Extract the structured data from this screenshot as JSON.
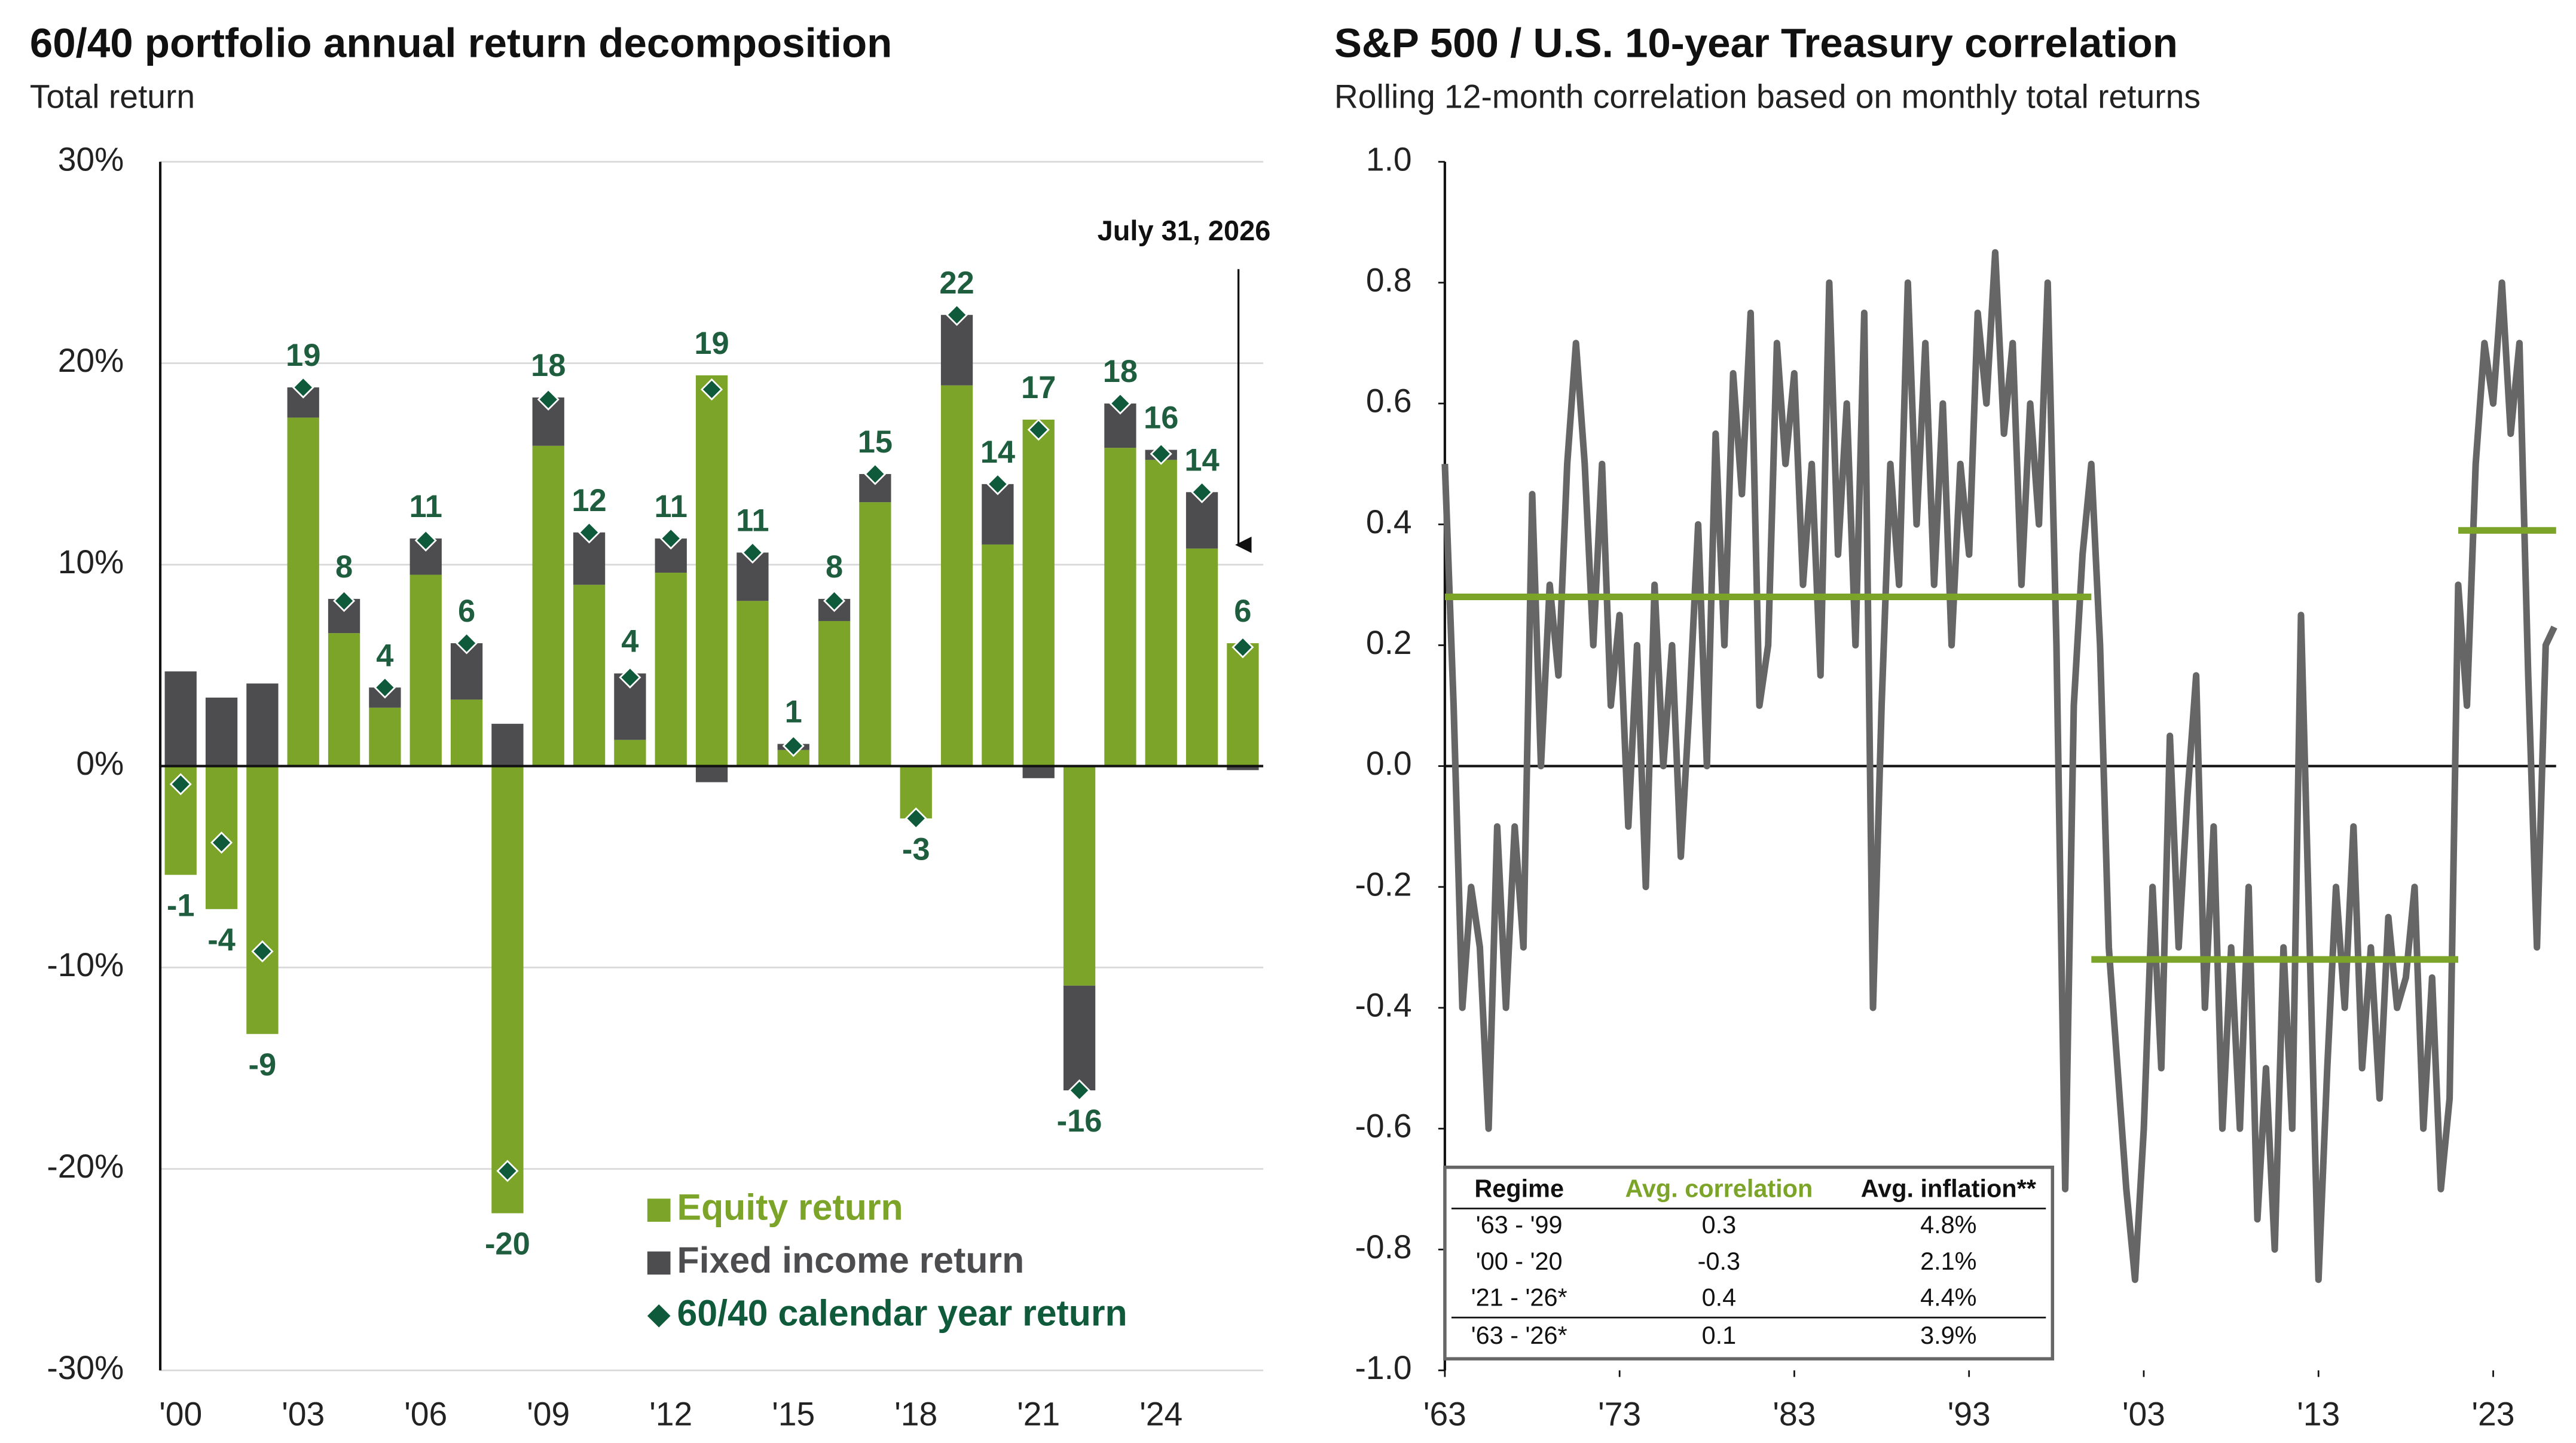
{
  "chart_data": [
    {
      "type": "bar",
      "stacked": true,
      "grid": true,
      "title": "60/40 portfolio annual return decomposition",
      "subtitle": "Total return",
      "annotation": "July 31, 2026",
      "categories": [
        "'00",
        null,
        null,
        "'03",
        null,
        null,
        "'06",
        null,
        null,
        "'09",
        null,
        null,
        "'12",
        null,
        null,
        "'15",
        null,
        null,
        "'18",
        null,
        null,
        "'21",
        null,
        null,
        "'24",
        null,
        null
      ],
      "series": [
        {
          "name": "Equity return",
          "color": "#7ba428",
          "values": [
            -5.4,
            -7.1,
            -13.3,
            17.3,
            6.6,
            2.9,
            9.5,
            3.3,
            -22.2,
            15.9,
            9.0,
            1.3,
            9.6,
            19.4,
            8.2,
            0.8,
            7.2,
            13.1,
            -2.6,
            18.9,
            11.0,
            17.2,
            -10.9,
            15.8,
            15.2,
            10.8,
            6.1
          ]
        },
        {
          "name": "Fixed income return",
          "color": "#4d4d4f",
          "values": [
            4.7,
            3.4,
            4.1,
            1.5,
            1.7,
            1.0,
            1.8,
            2.8,
            2.1,
            2.4,
            2.6,
            3.3,
            1.7,
            -0.8,
            2.4,
            0.3,
            1.1,
            1.4,
            0,
            3.5,
            3.0,
            -0.6,
            -5.2,
            2.2,
            0.5,
            2.8,
            -0.2
          ]
        }
      ],
      "total": {
        "name": "60/40 calendar year return",
        "color": "#0e5a3a",
        "values": [
          -0.9,
          -3.8,
          -9.2,
          18.8,
          8.2,
          3.9,
          11.2,
          6.1,
          -20.1,
          18.2,
          11.6,
          4.4,
          11.3,
          18.7,
          10.6,
          1.0,
          8.2,
          14.5,
          -2.6,
          22.4,
          14.0,
          16.7,
          -16.1,
          18.0,
          15.5,
          13.6,
          5.9
        ],
        "value_labels": [
          "-1",
          "-4",
          "-9",
          "19",
          "8",
          "4",
          "11",
          "6",
          "-20",
          "18",
          "12",
          "4",
          "11",
          "19",
          "11",
          "1",
          "8",
          "15",
          "-3",
          "22",
          "14",
          "17",
          "-16",
          "18",
          "16",
          "14",
          "6"
        ]
      },
      "ylim": [
        -30,
        30
      ],
      "yticks": [
        {
          "value": -30,
          "label": "-30%"
        },
        {
          "value": -20,
          "label": "-20%"
        },
        {
          "value": -10,
          "label": "-10%"
        },
        {
          "value": 0,
          "label": "0%"
        },
        {
          "value": 10,
          "label": "10%"
        },
        {
          "value": 20,
          "label": "20%"
        },
        {
          "value": 30,
          "label": "30%"
        }
      ]
    },
    {
      "type": "line",
      "title": "S&P 500 / U.S. 10-year Treasury correlation",
      "subtitle": "Rolling 12-month correlation based on monthly total returns",
      "x": [
        1963,
        1963.5,
        1964,
        1964.5,
        1965,
        1965.5,
        1966,
        1966.5,
        1967,
        1967.5,
        1968,
        1968.5,
        1969,
        1969.5,
        1970,
        1970.5,
        1971,
        1971.5,
        1972,
        1972.5,
        1973,
        1973.5,
        1974,
        1974.5,
        1975,
        1975.5,
        1976,
        1976.5,
        1977,
        1977.5,
        1978,
        1978.5,
        1979,
        1979.5,
        1980,
        1980.5,
        1981,
        1981.5,
        1982,
        1982.5,
        1983,
        1983.5,
        1984,
        1984.5,
        1985,
        1985.5,
        1986,
        1986.5,
        1987,
        1987.5,
        1988,
        1988.5,
        1989,
        1989.5,
        1990,
        1990.5,
        1991,
        1991.5,
        1992,
        1992.5,
        1993,
        1993.5,
        1994,
        1994.5,
        1995,
        1995.5,
        1996,
        1996.5,
        1997,
        1997.5,
        1998,
        1998.5,
        1999,
        1999.5,
        2000,
        2000.5,
        2001,
        2001.5,
        2002,
        2002.5,
        2003,
        2003.5,
        2004,
        2004.5,
        2005,
        2005.5,
        2006,
        2006.5,
        2007,
        2007.5,
        2008,
        2008.5,
        2009,
        2009.5,
        2010,
        2010.5,
        2011,
        2011.5,
        2012,
        2012.5,
        2013,
        2013.5,
        2014,
        2014.5,
        2015,
        2015.5,
        2016,
        2016.5,
        2017,
        2017.5,
        2018,
        2018.5,
        2019,
        2019.5,
        2020,
        2020.5,
        2021,
        2021.5,
        2022,
        2022.5,
        2023,
        2023.5,
        2024,
        2024.5,
        2025,
        2025.5,
        2026,
        2026.5
      ],
      "series": [
        {
          "color": "#666666",
          "values": [
            0.5,
            0.1,
            -0.4,
            -0.2,
            -0.3,
            -0.6,
            -0.1,
            -0.4,
            -0.1,
            -0.3,
            0.45,
            0.0,
            0.3,
            0.15,
            0.5,
            0.7,
            0.5,
            0.2,
            0.5,
            0.1,
            0.25,
            -0.1,
            0.2,
            -0.2,
            0.3,
            0.0,
            0.2,
            -0.15,
            0.1,
            0.4,
            0.0,
            0.55,
            0.2,
            0.65,
            0.45,
            0.75,
            0.1,
            0.2,
            0.7,
            0.5,
            0.65,
            0.3,
            0.5,
            0.15,
            0.8,
            0.35,
            0.6,
            0.2,
            0.75,
            -0.4,
            0.1,
            0.5,
            0.3,
            0.8,
            0.4,
            0.7,
            0.3,
            0.6,
            0.2,
            0.5,
            0.35,
            0.75,
            0.6,
            0.85,
            0.55,
            0.7,
            0.3,
            0.6,
            0.4,
            0.8,
            0.2,
            -0.7,
            0.1,
            0.35,
            0.5,
            0.2,
            -0.3,
            -0.5,
            -0.7,
            -0.85,
            -0.6,
            -0.2,
            -0.5,
            0.05,
            -0.3,
            -0.05,
            0.15,
            -0.4,
            -0.1,
            -0.6,
            -0.3,
            -0.6,
            -0.2,
            -0.75,
            -0.5,
            -0.8,
            -0.3,
            -0.6,
            0.25,
            -0.3,
            -0.85,
            -0.5,
            -0.2,
            -0.4,
            -0.1,
            -0.5,
            -0.3,
            -0.55,
            -0.25,
            -0.4,
            -0.35,
            -0.2,
            -0.6,
            -0.35,
            -0.7,
            -0.55,
            0.3,
            0.1,
            0.5,
            0.7,
            0.6,
            0.8,
            0.55,
            0.7,
            0.15,
            -0.3,
            0.2,
            0.23
          ]
        }
      ],
      "avg_lines": {
        "color": "#7ba428",
        "segments": [
          {
            "x": [
              1963,
              2000
            ],
            "value": 0.28
          },
          {
            "x": [
              2000,
              2021
            ],
            "value": -0.32
          },
          {
            "x": [
              2021,
              2026.6
            ],
            "value": 0.39
          }
        ]
      },
      "table": {
        "columns": [
          "Regime",
          "Avg. correlation",
          "Avg. inflation**"
        ],
        "rows": [
          [
            "'63 - '99",
            "0.3",
            "4.8%"
          ],
          [
            "'00 - '20",
            "-0.3",
            "2.1%"
          ],
          [
            "'21 - '26*",
            "0.4",
            "4.4%"
          ],
          [
            "'63 - '26*",
            "0.1",
            "3.9%"
          ]
        ]
      },
      "xlim": [
        1963,
        2026.6
      ],
      "xticks": [
        {
          "value": 1963,
          "label": "'63"
        },
        {
          "value": 1973,
          "label": "'73"
        },
        {
          "value": 1983,
          "label": "'83"
        },
        {
          "value": 1993,
          "label": "'93"
        },
        {
          "value": 2003,
          "label": "'03"
        },
        {
          "value": 2013,
          "label": "'13"
        },
        {
          "value": 2023,
          "label": "'23"
        }
      ],
      "ylim": [
        -1,
        1
      ],
      "yticks": [
        {
          "value": -1,
          "label": "-1.0"
        },
        -0.8,
        -0.6,
        -0.4,
        -0.2,
        {
          "value": 0,
          "label": "0.0"
        },
        0.2,
        0.4,
        0.6,
        0.8,
        {
          "value": 1,
          "label": "1.0"
        }
      ]
    }
  ]
}
